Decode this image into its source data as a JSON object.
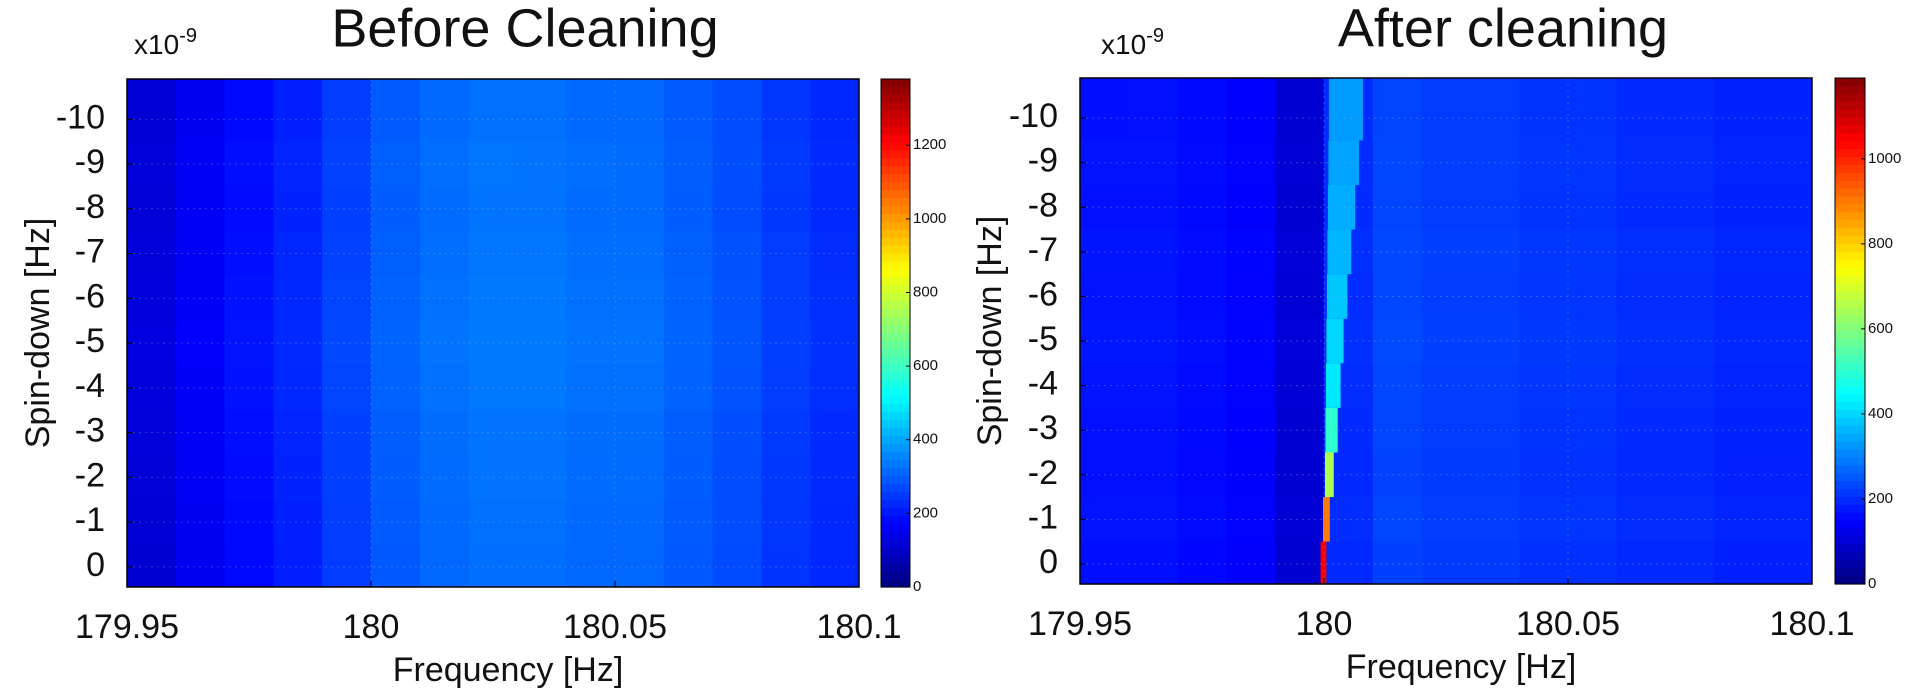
{
  "chart_data": [
    {
      "type": "heatmap",
      "title": "Before Cleaning",
      "x_label": "Frequency [Hz]",
      "y_label": "Spin-down [Hz]",
      "y_scale_label": "x10",
      "y_scale_exponent": "-9",
      "xlim": [
        179.95,
        180.1
      ],
      "xticks": [
        179.95,
        180,
        180.05,
        180.1
      ],
      "ylim": [
        0.45,
        -10.9
      ],
      "yticks": [
        -10,
        -9,
        -8,
        -7,
        -6,
        -5,
        -4,
        -3,
        -2,
        -1,
        0
      ],
      "grid": true,
      "colormap": "jet",
      "clim": [
        0,
        1380
      ],
      "cticks": [
        0,
        200,
        400,
        600,
        800,
        1000,
        1200
      ],
      "x_edges": [
        179.95,
        179.96,
        179.97,
        179.98,
        179.99,
        180,
        180.01,
        180.02,
        180.03,
        180.04,
        180.05,
        180.06,
        180.07,
        180.08,
        180.09,
        180.1
      ],
      "y": [
        -10,
        -9,
        -8,
        -7,
        -6,
        -5,
        -4,
        -3,
        -2,
        -1,
        0
      ],
      "z": [
        [
          115,
          155,
          185,
          215,
          255,
          295,
          315,
          325,
          325,
          315,
          315,
          295,
          275,
          245,
          225
        ],
        [
          120,
          160,
          190,
          220,
          262,
          302,
          322,
          332,
          330,
          322,
          318,
          300,
          280,
          250,
          230
        ],
        [
          118,
          158,
          188,
          218,
          258,
          298,
          318,
          328,
          328,
          318,
          318,
          298,
          278,
          248,
          228
        ],
        [
          122,
          162,
          192,
          222,
          262,
          302,
          322,
          332,
          332,
          322,
          322,
          302,
          282,
          252,
          232
        ],
        [
          125,
          165,
          195,
          225,
          265,
          305,
          325,
          335,
          335,
          325,
          325,
          305,
          285,
          255,
          235
        ],
        [
          128,
          168,
          198,
          228,
          268,
          308,
          328,
          338,
          338,
          328,
          328,
          308,
          288,
          258,
          238
        ],
        [
          125,
          165,
          195,
          225,
          265,
          305,
          325,
          335,
          335,
          325,
          325,
          305,
          285,
          255,
          235
        ],
        [
          120,
          160,
          190,
          220,
          260,
          300,
          320,
          330,
          330,
          320,
          320,
          300,
          280,
          250,
          230
        ],
        [
          118,
          158,
          188,
          218,
          258,
          298,
          318,
          328,
          328,
          318,
          318,
          298,
          278,
          248,
          228
        ],
        [
          115,
          155,
          185,
          215,
          255,
          295,
          315,
          325,
          325,
          315,
          315,
          295,
          275,
          245,
          225
        ],
        [
          112,
          152,
          182,
          212,
          252,
          292,
          312,
          322,
          322,
          312,
          312,
          292,
          272,
          242,
          222
        ]
      ]
    },
    {
      "type": "heatmap",
      "title": "After cleaning",
      "x_label": "Frequency [Hz]",
      "y_label": "Spin-down [Hz]",
      "y_scale_label": "x10",
      "y_scale_exponent": "-9",
      "xlim": [
        179.95,
        180.1
      ],
      "xticks": [
        179.95,
        180,
        180.05,
        180.1
      ],
      "ylim": [
        0.45,
        -10.9
      ],
      "yticks": [
        -10,
        -9,
        -8,
        -7,
        -6,
        -5,
        -4,
        -3,
        -2,
        -1,
        0
      ],
      "grid": true,
      "colormap": "jet",
      "clim": [
        0,
        1190
      ],
      "cticks": [
        0,
        200,
        400,
        600,
        800,
        1000
      ],
      "x_edges": [
        179.95,
        179.96,
        179.97,
        179.98,
        179.99,
        180,
        180.01,
        180.02,
        180.03,
        180.04,
        180.05,
        180.06,
        180.07,
        180.08,
        180.09,
        180.1
      ],
      "y": [
        -10,
        -9,
        -8,
        -7,
        -6,
        -5,
        -4,
        -3,
        -2,
        -1,
        0
      ],
      "z": [
        [
          165,
          168,
          158,
          148,
          98,
          198,
          228,
          218,
          218,
          208,
          208,
          198,
          198,
          188,
          188
        ],
        [
          170,
          170,
          160,
          150,
          100,
          200,
          230,
          220,
          220,
          210,
          210,
          200,
          200,
          190,
          190
        ],
        [
          168,
          168,
          158,
          148,
          98,
          198,
          228,
          218,
          218,
          208,
          208,
          198,
          198,
          188,
          188
        ],
        [
          172,
          172,
          162,
          152,
          102,
          202,
          232,
          222,
          222,
          212,
          212,
          202,
          202,
          192,
          192
        ],
        [
          170,
          170,
          160,
          150,
          100,
          200,
          230,
          220,
          220,
          210,
          210,
          200,
          200,
          190,
          190
        ],
        [
          174,
          174,
          164,
          154,
          104,
          204,
          234,
          224,
          224,
          214,
          214,
          204,
          204,
          194,
          194
        ],
        [
          170,
          170,
          160,
          150,
          100,
          200,
          230,
          220,
          220,
          210,
          210,
          200,
          200,
          190,
          190
        ],
        [
          168,
          168,
          158,
          148,
          98,
          198,
          228,
          218,
          218,
          208,
          208,
          198,
          198,
          188,
          188
        ],
        [
          166,
          166,
          156,
          146,
          96,
          196,
          226,
          216,
          216,
          206,
          206,
          196,
          196,
          186,
          186
        ],
        [
          170,
          170,
          160,
          150,
          100,
          200,
          230,
          220,
          220,
          210,
          210,
          200,
          200,
          190,
          190
        ],
        [
          165,
          165,
          155,
          145,
          95,
          195,
          225,
          215,
          215,
          205,
          205,
          195,
          195,
          185,
          185
        ]
      ],
      "signal_x0": [
        180.001,
        180.0009,
        180.0008,
        180.0007,
        180.0006,
        180.0005,
        180.0004,
        180.0003,
        180.0002,
        179.9998,
        179.9993
      ],
      "signal_x1": [
        180.008,
        180.0072,
        180.0064,
        180.0056,
        180.0048,
        180.004,
        180.0034,
        180.0028,
        180.002,
        180.0012,
        180.0005
      ],
      "signal_values": [
        330,
        340,
        350,
        360,
        380,
        400,
        420,
        500,
        650,
        900,
        1050
      ]
    }
  ]
}
